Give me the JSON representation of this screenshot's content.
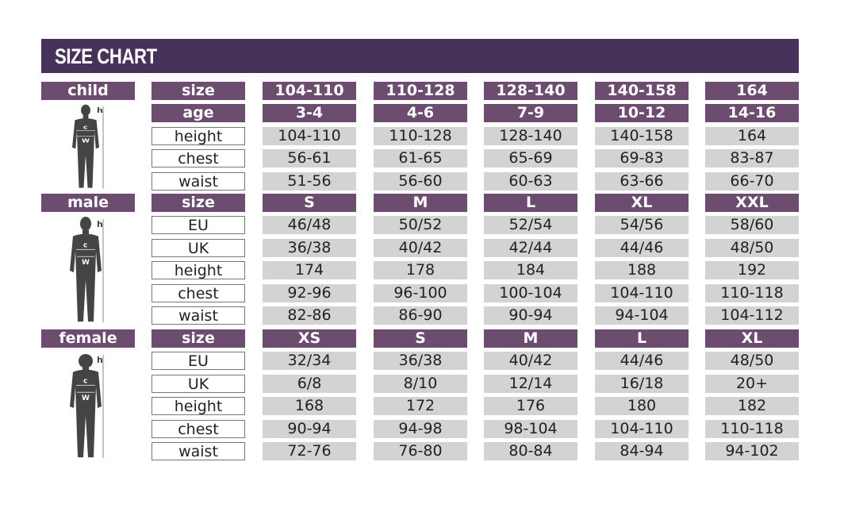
{
  "title": "SIZE CHART",
  "colors": {
    "header": "#47325a",
    "label": "#6c4c6f",
    "cell": "#d3d3d3"
  },
  "sections": [
    {
      "label": "child",
      "figure": "child-silhouette-icon",
      "rows": [
        {
          "key": "size",
          "values": [
            "104-110",
            "110-128",
            "128-140",
            "140-158",
            "164"
          ],
          "header": true
        },
        {
          "key": "age",
          "values": [
            "3-4",
            "4-6",
            "7-9",
            "10-12",
            "14-16"
          ],
          "header": true
        },
        {
          "key": "height",
          "values": [
            "104-110",
            "110-128",
            "128-140",
            "140-158",
            "164"
          ]
        },
        {
          "key": "chest",
          "values": [
            "56-61",
            "61-65",
            "65-69",
            "69-83",
            "83-87"
          ]
        },
        {
          "key": "waist",
          "values": [
            "51-56",
            "56-60",
            "60-63",
            "63-66",
            "66-70"
          ]
        }
      ]
    },
    {
      "label": "male",
      "figure": "male-silhouette-icon",
      "rows": [
        {
          "key": "size",
          "values": [
            "S",
            "M",
            "L",
            "XL",
            "XXL"
          ],
          "header": true
        },
        {
          "key": "EU",
          "values": [
            "46/48",
            "50/52",
            "52/54",
            "54/56",
            "58/60"
          ]
        },
        {
          "key": "UK",
          "values": [
            "36/38",
            "40/42",
            "42/44",
            "44/46",
            "48/50"
          ]
        },
        {
          "key": "height",
          "values": [
            "174",
            "178",
            "184",
            "188",
            "192"
          ]
        },
        {
          "key": "chest",
          "values": [
            "92-96",
            "96-100",
            "100-104",
            "104-110",
            "110-118"
          ]
        },
        {
          "key": "waist",
          "values": [
            "82-86",
            "86-90",
            "90-94",
            "94-104",
            "104-112"
          ]
        }
      ]
    },
    {
      "label": "female",
      "figure": "female-silhouette-icon",
      "rows": [
        {
          "key": "size",
          "values": [
            "XS",
            "S",
            "M",
            "L",
            "XL"
          ],
          "header": true
        },
        {
          "key": "EU",
          "values": [
            "32/34",
            "36/38",
            "40/42",
            "44/46",
            "48/50"
          ]
        },
        {
          "key": "UK",
          "values": [
            "6/8",
            "8/10",
            "12/14",
            "16/18",
            "20+"
          ]
        },
        {
          "key": "height",
          "values": [
            "168",
            "172",
            "176",
            "180",
            "182"
          ]
        },
        {
          "key": "chest",
          "values": [
            "90-94",
            "94-98",
            "98-104",
            "104-110",
            "110-118"
          ]
        },
        {
          "key": "waist",
          "values": [
            "72-76",
            "76-80",
            "80-84",
            "84-94",
            "94-102"
          ]
        }
      ]
    }
  ],
  "figure_marks": {
    "h": "h",
    "c": "c",
    "w": "W"
  }
}
